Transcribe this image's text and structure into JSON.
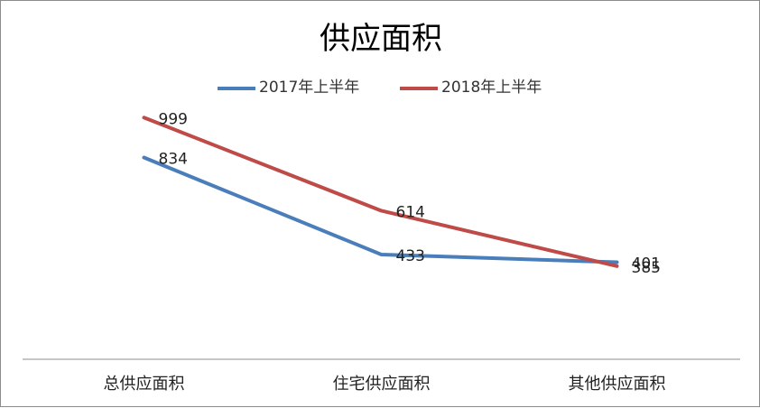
{
  "chart_data": {
    "type": "line",
    "title": "供应面积",
    "categories": [
      "总供应面积",
      "住宅供应面积",
      "其他供应面积"
    ],
    "series": [
      {
        "name": "2017年上半年",
        "values": [
          834,
          433,
          401
        ],
        "color": "#4a7ebb"
      },
      {
        "name": "2018年上半年",
        "values": [
          999,
          614,
          385
        ],
        "color": "#be4b48"
      }
    ],
    "ylim": [
      0,
      1200
    ],
    "grid": false,
    "legend_position": "top"
  }
}
